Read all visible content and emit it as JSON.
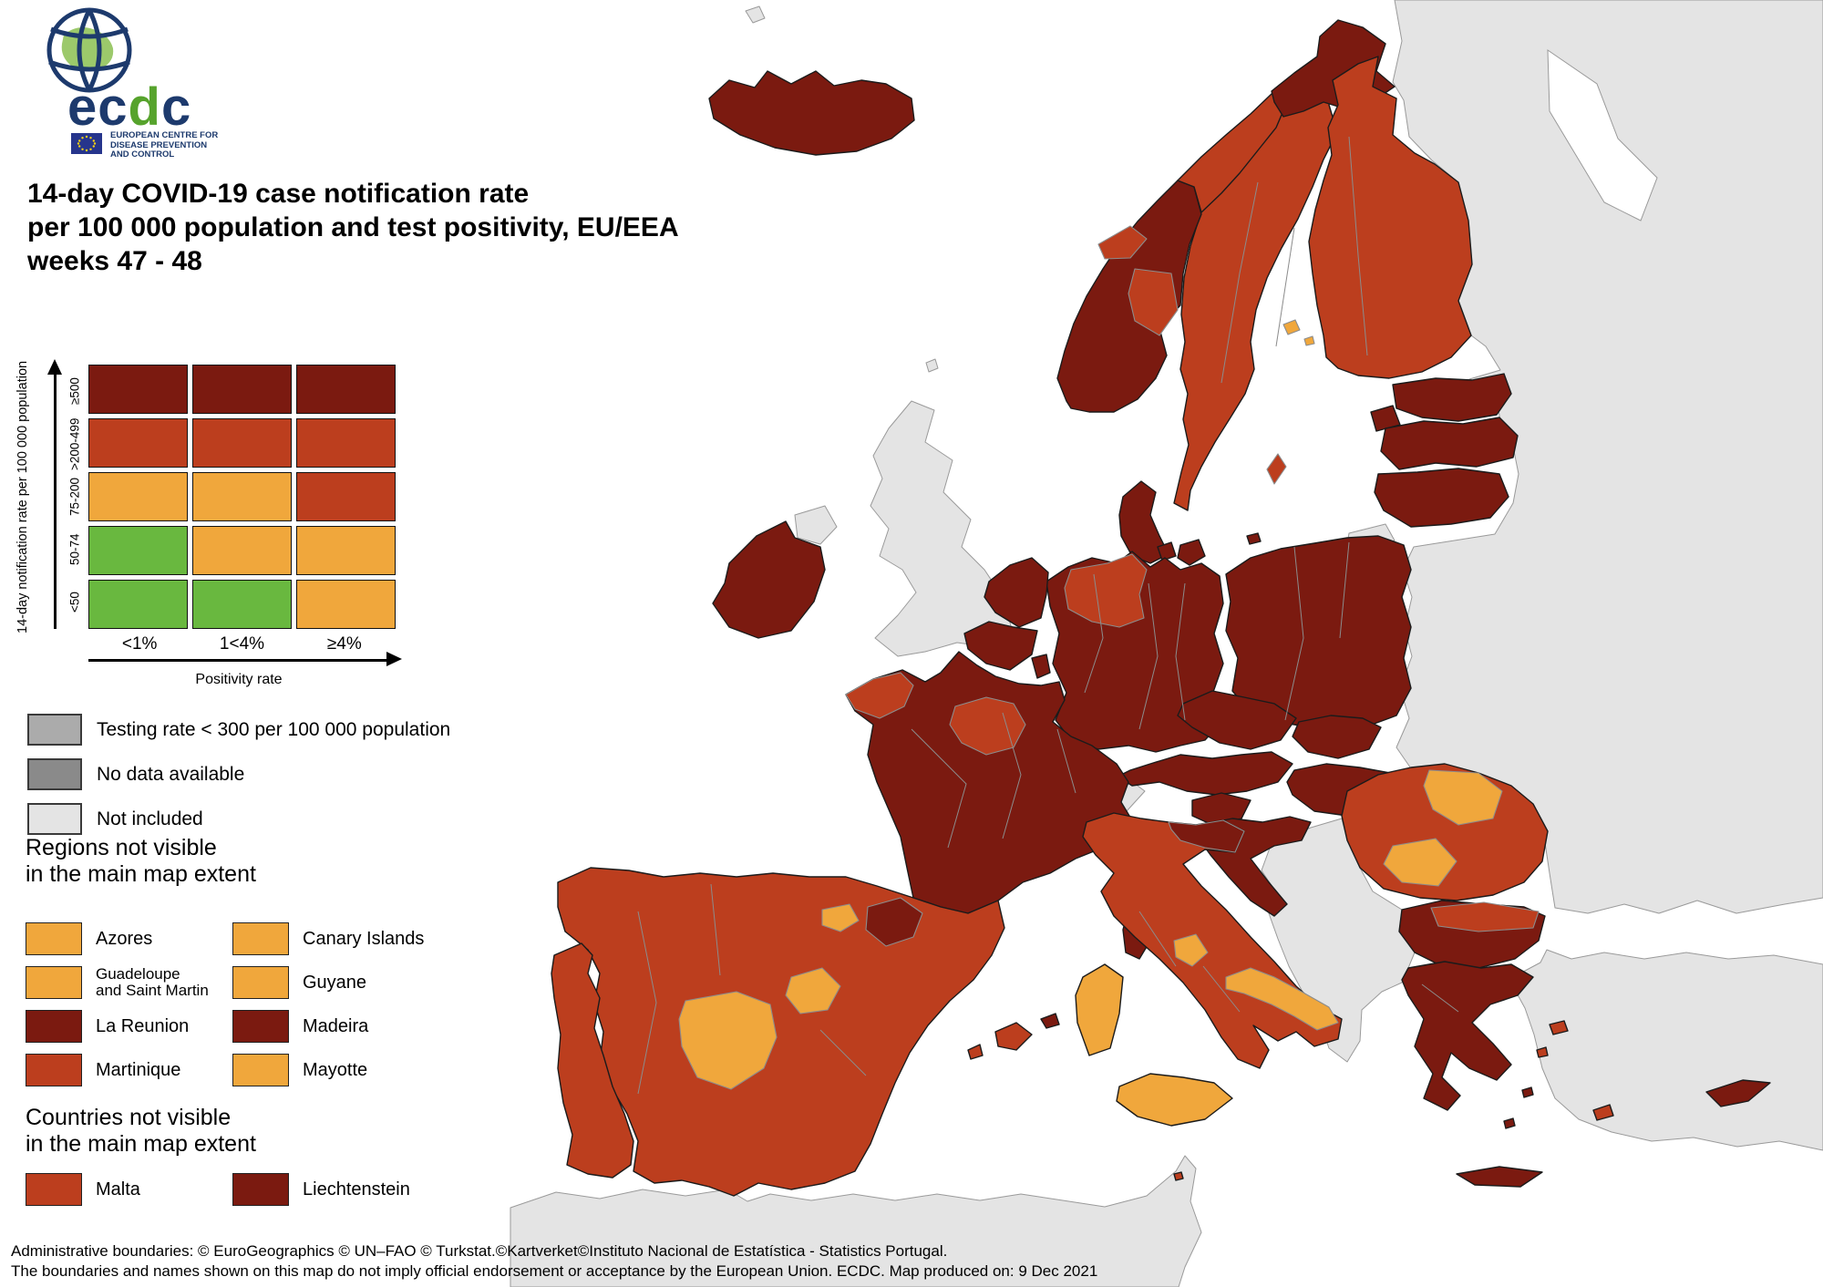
{
  "palette": {
    "dark_red": "#7B1A10",
    "red": "#BC3E1E",
    "orange": "#F0A73C",
    "green": "#69B83F",
    "gray_testing": "#ABABAB",
    "gray_no_data": "#8A8A8A",
    "gray_not_included": "#E4E4E4",
    "sea": "#FFFFFF",
    "logo_navy": "#1D3A6D",
    "logo_green": "#56A32C",
    "eu_blue": "#26358C",
    "eu_star": "#F7D117"
  },
  "logo": {
    "e": "e",
    "c1": "c",
    "d": "d",
    "c2": "c",
    "org_line1": "EUROPEAN CENTRE FOR",
    "org_line2": "DISEASE PREVENTION",
    "org_line3": "AND CONTROL"
  },
  "title": {
    "line1": "14-day COVID-19 case notification rate",
    "line2": "per 100 000 population and test positivity, EU/EEA",
    "line3": "weeks 47 - 48"
  },
  "matrix": {
    "y_axis_label": "14-day notification rate per 100 000 population",
    "x_axis_label": "Positivity rate",
    "row_labels": [
      "≥500",
      ">200-499",
      "75-200",
      "50-74",
      "<50"
    ],
    "col_labels": [
      "<1%",
      "1<4%",
      "≥4%"
    ],
    "cells": [
      [
        "dark_red",
        "dark_red",
        "dark_red"
      ],
      [
        "red",
        "red",
        "red"
      ],
      [
        "orange",
        "orange",
        "red"
      ],
      [
        "green",
        "orange",
        "orange"
      ],
      [
        "green",
        "green",
        "orange"
      ]
    ]
  },
  "status_legend": [
    {
      "color": "gray_testing",
      "label": "Testing rate < 300 per 100 000 population"
    },
    {
      "color": "gray_no_data",
      "label": "No data available"
    },
    {
      "color": "gray_not_included",
      "label": "Not included"
    }
  ],
  "regions_not_visible": {
    "heading_line1": "Regions not visible",
    "heading_line2": "in the main map extent",
    "items": [
      {
        "color": "orange",
        "label": "Azores"
      },
      {
        "color": "orange",
        "label": "Canary Islands"
      },
      {
        "color": "orange",
        "label": "Guadeloupe\nand Saint Martin"
      },
      {
        "color": "orange",
        "label": "Guyane"
      },
      {
        "color": "dark_red",
        "label": "La Reunion"
      },
      {
        "color": "dark_red",
        "label": "Madeira"
      },
      {
        "color": "red",
        "label": "Martinique"
      },
      {
        "color": "orange",
        "label": "Mayotte"
      }
    ]
  },
  "countries_not_visible": {
    "heading_line1": "Countries not visible",
    "heading_line2": "in the main map extent",
    "items": [
      {
        "color": "red",
        "label": "Malta"
      },
      {
        "color": "dark_red",
        "label": "Liechtenstein"
      }
    ]
  },
  "footer": {
    "line1": "Administrative boundaries: © EuroGeographics © UN–FAO © Turkstat.©Kartverket©Instituto Nacional de Estatística - Statistics Portugal.",
    "line2": "The boundaries and names shown on this map do not imply official endorsement or acceptance by the European Union. ECDC. Map produced on: 9 Dec 2021"
  },
  "map": {
    "country_categories": {
      "iceland": "dark_red",
      "ireland": "dark_red",
      "norway-south": "dark_red",
      "norway-innlandet": "red",
      "norway-coast-mid": "red",
      "norway-nordland": "red",
      "norway-north": "dark_red",
      "sweden": "red",
      "gotland": "red",
      "finland": "red",
      "aland": "orange",
      "aland2": "orange",
      "estonia": "dark_red",
      "saaremaa": "dark_red",
      "latvia": "dark_red",
      "lithuania": "dark_red",
      "denmark-jutland": "dark_red",
      "denmark-funen": "dark_red",
      "denmark-zealand": "dark_red",
      "bornholm": "dark_red",
      "germany": "dark_red",
      "germany-northwest": "red",
      "netherlands": "dark_red",
      "belgium": "dark_red",
      "luxembourg": "dark_red",
      "poland": "dark_red",
      "czechia": "dark_red",
      "slovakia": "dark_red",
      "austria": "dark_red",
      "hungary": "dark_red",
      "slovenia": "dark_red",
      "croatia": "dark_red",
      "france": "dark_red",
      "france-brittany": "red",
      "france-centre": "red",
      "corsica": "dark_red",
      "spain": "red",
      "spain-extremadura": "orange",
      "spain-madrid": "orange",
      "spain-rioja": "orange",
      "spain-navarra": "dark_red",
      "mallorca": "red",
      "menorca": "dark_red",
      "ibiza": "red",
      "portugal": "red",
      "italy": "red",
      "italy-northeast": "dark_red",
      "italy-umbria": "orange",
      "italy-puglia-molise": "orange",
      "sicily": "orange",
      "sardinia": "orange",
      "malta-island": "red",
      "romania": "red",
      "romania-northeast": "orange",
      "romania-centre": "orange",
      "bulgaria": "dark_red",
      "bulgaria-north": "red",
      "greece": "dark_red",
      "crete": "dark_red",
      "lesbos": "red",
      "chios": "red",
      "rhodes": "red",
      "cyclades1": "dark_red",
      "cyclades2": "dark_red",
      "cyprus": "dark_red",
      "russia-ukraine-belarus": "gray_not_included",
      "united-kingdom": "gray_not_included",
      "northern-ireland": "gray_not_included",
      "faroe-islands": "gray_not_included",
      "shetland": "gray_not_included",
      "switzerland": "gray_not_included",
      "western-balkans": "gray_not_included",
      "kaliningrad": "gray_not_included",
      "turkey": "gray_not_included",
      "north-africa": "gray_not_included"
    }
  }
}
